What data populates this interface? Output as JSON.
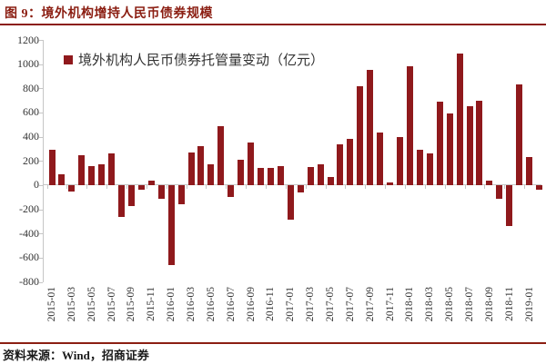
{
  "header": {
    "title": "图 9：境外机构增持人民币债券规模"
  },
  "legend": {
    "label": "境外机构人民币债券托管量变动（亿元）"
  },
  "footer": {
    "source": "资料来源：Wind，招商证券"
  },
  "colors": {
    "accent": "#8B1E12",
    "bar": "#8F191C",
    "axis_line": "#c6c6c6",
    "axis_text": "#333333"
  },
  "chart_data": {
    "type": "bar",
    "title": "图 9：境外机构增持人民币债券规模",
    "series_name": "境外机构人民币债券托管量变动（亿元）",
    "categories": [
      "2015-01",
      "2015-02",
      "2015-03",
      "2015-04",
      "2015-05",
      "2015-06",
      "2015-07",
      "2015-08",
      "2015-09",
      "2015-10",
      "2015-11",
      "2015-12",
      "2016-01",
      "2016-02",
      "2016-03",
      "2016-04",
      "2016-05",
      "2016-06",
      "2016-07",
      "2016-08",
      "2016-09",
      "2016-10",
      "2016-11",
      "2016-12",
      "2017-01",
      "2017-02",
      "2017-03",
      "2017-04",
      "2017-05",
      "2017-06",
      "2017-07",
      "2017-08",
      "2017-09",
      "2017-10",
      "2017-11",
      "2017-12",
      "2018-01",
      "2018-02",
      "2018-03",
      "2018-04",
      "2018-05",
      "2018-06",
      "2018-07",
      "2018-08",
      "2018-09",
      "2018-10",
      "2018-11",
      "2018-12",
      "2019-01",
      "2019-02"
    ],
    "values": [
      295,
      90,
      -55,
      250,
      155,
      175,
      260,
      -260,
      -170,
      -35,
      40,
      -110,
      -660,
      -160,
      270,
      320,
      170,
      490,
      -100,
      210,
      355,
      140,
      145,
      158,
      -285,
      -60,
      150,
      170,
      65,
      340,
      380,
      820,
      950,
      435,
      20,
      395,
      980,
      290,
      260,
      690,
      595,
      1090,
      650,
      700,
      40,
      -115,
      -340,
      830,
      235,
      -35
    ],
    "ylim": [
      -800,
      1200
    ],
    "ytick_interval": 200,
    "xtick_label_interval": 2,
    "grid": false,
    "legend_position": "top-left",
    "xlabel": "",
    "ylabel": ""
  }
}
